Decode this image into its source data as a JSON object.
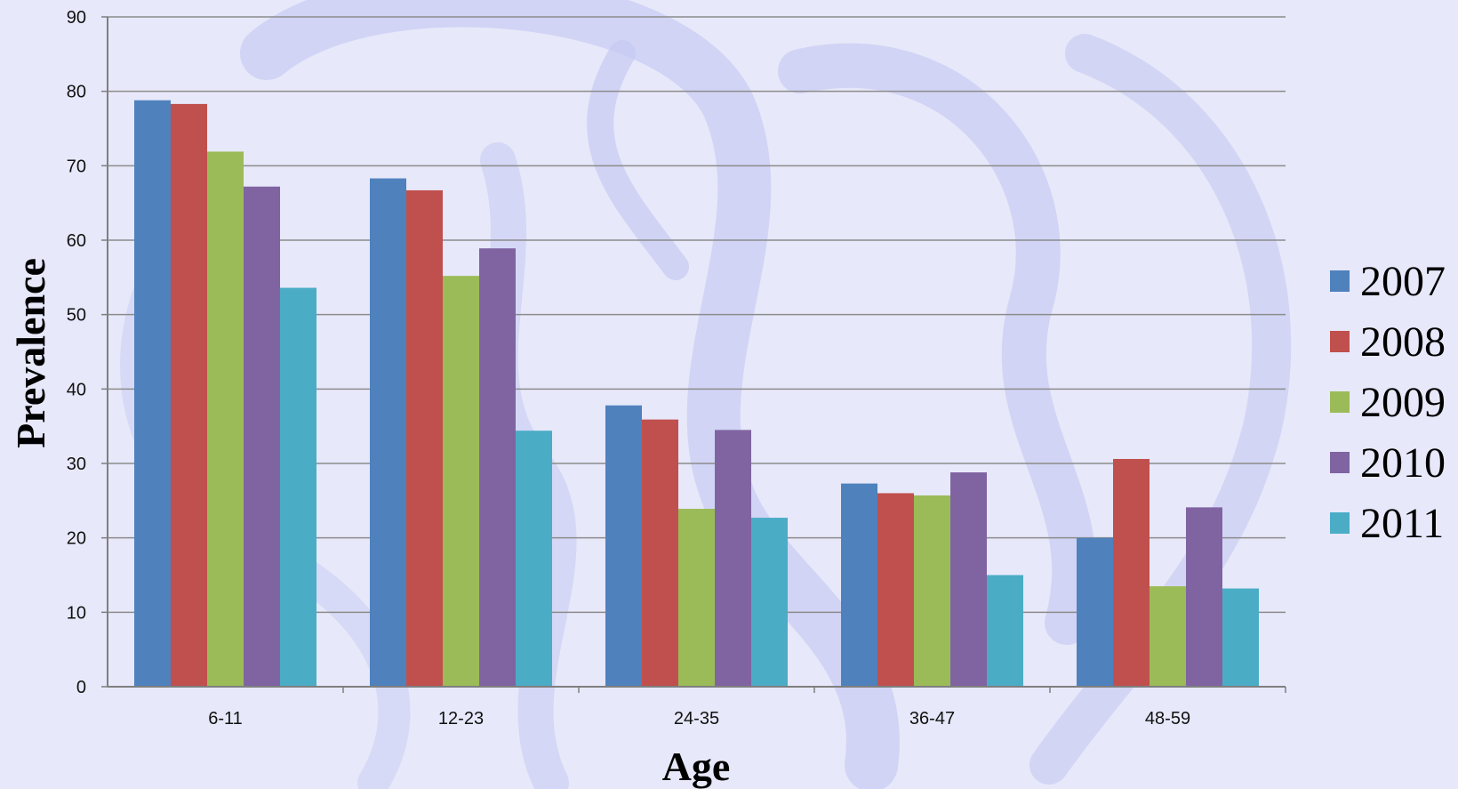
{
  "colors": {
    "background": "#e7e8f9",
    "watermark": "#c5c9f1",
    "gridline": "#8c8c8c",
    "axis": "#7f7f7f"
  },
  "chart_data": {
    "type": "bar",
    "title": "",
    "xlabel": "Age",
    "ylabel": "Prevalence",
    "categories": [
      "6-11",
      "12-23",
      "24-35",
      "36-47",
      "48-59"
    ],
    "ylim": [
      0,
      90
    ],
    "yticks": [
      0,
      10,
      20,
      30,
      40,
      50,
      60,
      70,
      80,
      90
    ],
    "grid": true,
    "legend_position": "right",
    "series": [
      {
        "name": "2007",
        "color": "#4f81bd",
        "values": [
          78.8,
          68.3,
          37.8,
          27.3,
          20.0
        ]
      },
      {
        "name": "2008",
        "color": "#c0504d",
        "values": [
          78.3,
          66.7,
          35.9,
          26.0,
          30.6
        ]
      },
      {
        "name": "2009",
        "color": "#9bbb59",
        "values": [
          71.9,
          55.2,
          23.9,
          25.7,
          13.5
        ]
      },
      {
        "name": "2010",
        "color": "#8064a2",
        "values": [
          67.2,
          58.9,
          34.5,
          28.8,
          24.1
        ]
      },
      {
        "name": "2011",
        "color": "#4bacc6",
        "values": [
          53.6,
          34.4,
          22.7,
          15.0,
          13.2
        ]
      }
    ]
  }
}
